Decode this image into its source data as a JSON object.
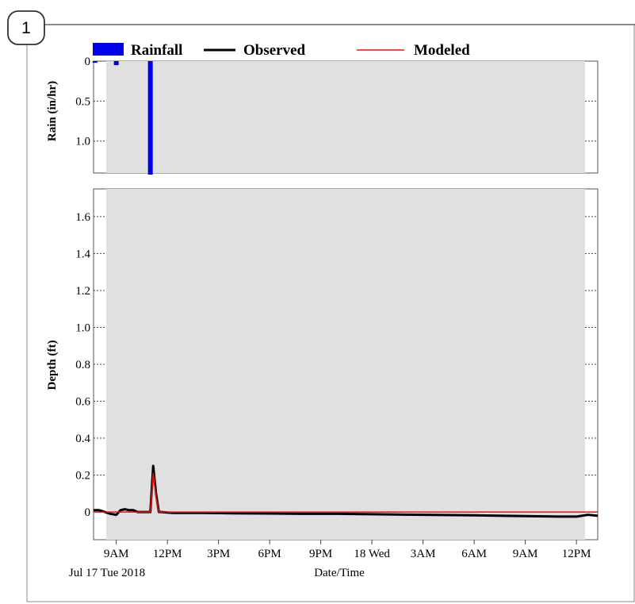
{
  "panel_number": "1",
  "legend": {
    "rainfall": "Rainfall",
    "observed": "Observed",
    "modeled": "Modeled"
  },
  "colors": {
    "rainfall": "#0000ee",
    "observed": "#000000",
    "modeled": "#ee1111",
    "plot_background": "#e0e0e0",
    "outer_background": "#ffffff"
  },
  "chart_data": [
    {
      "type": "bar",
      "ylabel": "Rain (in/hr)",
      "y_inverted": true,
      "ylim": [
        0,
        1.4
      ],
      "yticks": [
        "0",
        "0.5",
        "1.0"
      ],
      "ytick_values": [
        0,
        0.5,
        1.0
      ],
      "series": [
        {
          "name": "Rainfall",
          "x": [
            "2018-07-17 07:45",
            "2018-07-17 09:00",
            "2018-07-17 11:00"
          ],
          "values": [
            0.02,
            0.05,
            1.42
          ]
        }
      ]
    },
    {
      "type": "line",
      "xlabel": "Date/Time",
      "ylabel": "Depth (ft)",
      "ylim": [
        -0.15,
        1.75
      ],
      "yticks": [
        "0",
        "0.2",
        "0.4",
        "0.6",
        "0.8",
        "1.0",
        "1.2",
        "1.4",
        "1.6"
      ],
      "ytick_values": [
        0,
        0.2,
        0.4,
        0.6,
        0.8,
        1.0,
        1.2,
        1.4,
        1.6
      ],
      "xlim": [
        "2018-07-17 07:40",
        "2018-07-18 13:15"
      ],
      "xticks": [
        "9AM",
        "12PM",
        "3PM",
        "6PM",
        "9PM",
        "18 Wed",
        "3AM",
        "6AM",
        "9AM",
        "12PM"
      ],
      "xtick_values": [
        "2018-07-17 09:00",
        "2018-07-17 12:00",
        "2018-07-17 15:00",
        "2018-07-17 18:00",
        "2018-07-17 21:00",
        "2018-07-18 00:00",
        "2018-07-18 03:00",
        "2018-07-18 06:00",
        "2018-07-18 09:00",
        "2018-07-18 12:00"
      ],
      "date_label": "Jul 17 Tue 2018",
      "series": [
        {
          "name": "Observed",
          "x": [
            "2018-07-17 07:40",
            "2018-07-17 08:00",
            "2018-07-17 08:20",
            "2018-07-17 08:40",
            "2018-07-17 09:00",
            "2018-07-17 09:15",
            "2018-07-17 09:30",
            "2018-07-17 09:45",
            "2018-07-17 10:00",
            "2018-07-17 10:15",
            "2018-07-17 10:30",
            "2018-07-17 10:45",
            "2018-07-17 11:00",
            "2018-07-17 11:10",
            "2018-07-17 11:20",
            "2018-07-17 11:30",
            "2018-07-17 11:40",
            "2018-07-17 12:00",
            "2018-07-17 12:20",
            "2018-07-17 12:40",
            "2018-07-17 14:00",
            "2018-07-17 16:00",
            "2018-07-17 18:00",
            "2018-07-17 20:00",
            "2018-07-17 22:00",
            "2018-07-18 00:00",
            "2018-07-18 03:00",
            "2018-07-18 06:00",
            "2018-07-18 09:00",
            "2018-07-18 11:00",
            "2018-07-18 12:00",
            "2018-07-18 12:40",
            "2018-07-18 13:15"
          ],
          "values": [
            0.01,
            0.01,
            0.0,
            -0.01,
            -0.015,
            0.01,
            0.015,
            0.01,
            0.01,
            0.0,
            0.0,
            0.0,
            0.0,
            0.25,
            0.1,
            0.0,
            0.0,
            -0.003,
            -0.005,
            -0.005,
            -0.005,
            -0.007,
            -0.008,
            -0.01,
            -0.01,
            -0.012,
            -0.015,
            -0.018,
            -0.022,
            -0.025,
            -0.025,
            -0.015,
            -0.02
          ]
        },
        {
          "name": "Modeled",
          "x": [
            "2018-07-17 07:40",
            "2018-07-17 09:00",
            "2018-07-17 11:00",
            "2018-07-17 11:05",
            "2018-07-17 11:10",
            "2018-07-17 11:20",
            "2018-07-17 11:30",
            "2018-07-17 12:00",
            "2018-07-18 13:15"
          ],
          "values": [
            0.0,
            0.0,
            0.0,
            0.1,
            0.21,
            0.08,
            0.0,
            0.0,
            0.0
          ]
        }
      ]
    }
  ]
}
